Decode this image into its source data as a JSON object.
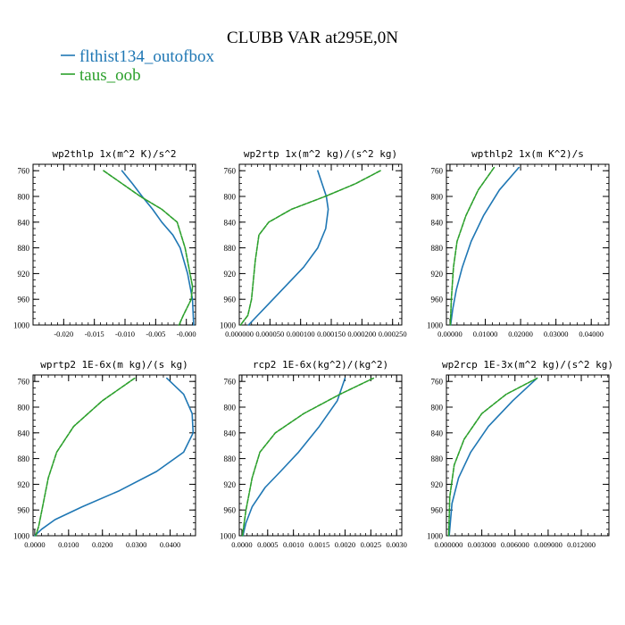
{
  "figure": {
    "title": "CLUBB VAR at295E,0N",
    "legend": [
      {
        "name": "flthist134_outofbox",
        "color": "#1f77b4"
      },
      {
        "name": "taus_oob",
        "color": "#2ca02c"
      }
    ]
  },
  "chart_data": [
    {
      "type": "line",
      "title": "wp2thlp  1x(m^2 K)/s^2",
      "xlim": [
        -0.025,
        0.0015
      ],
      "ylim": [
        1000,
        750
      ],
      "xticks": [
        -0.02,
        -0.015,
        -0.01,
        -0.005,
        -0.0
      ],
      "xtick_labels": [
        "-0.020",
        "-0.015",
        "-0.010",
        "-0.005",
        "-0.000"
      ],
      "yticks": [
        760,
        800,
        840,
        880,
        920,
        960,
        1000
      ],
      "series": [
        {
          "name": "flthist134_outofbox",
          "color": "#1f77b4",
          "x": [
            -0.0105,
            -0.0088,
            -0.0072,
            -0.0055,
            -0.004,
            -0.0022,
            -0.001,
            0.0002,
            0.001,
            0.0012
          ],
          "y": [
            760,
            780,
            800,
            820,
            840,
            860,
            880,
            920,
            960,
            1000
          ]
        },
        {
          "name": "taus_oob",
          "color": "#2ca02c",
          "x": [
            -0.0135,
            -0.0105,
            -0.0075,
            -0.004,
            -0.0015,
            -0.0002,
            0.001,
            0.0008,
            -0.0005,
            -0.0012
          ],
          "y": [
            760,
            780,
            800,
            820,
            840,
            880,
            940,
            960,
            985,
            1000
          ]
        }
      ]
    },
    {
      "type": "line",
      "title": "wp2rtp  1x(m^2 kg)/(s^2 kg)",
      "xlim": [
        0,
        0.000265
      ],
      "ylim": [
        1000,
        750
      ],
      "xticks": [
        0.0,
        5e-05,
        0.0001,
        0.00015,
        0.0002,
        0.00025
      ],
      "xtick_labels": [
        "0.000000",
        "0.000050",
        "0.000100",
        "0.000150",
        "0.000200",
        "0.000250"
      ],
      "yticks": [
        760,
        800,
        840,
        880,
        920,
        960,
        1000
      ],
      "series": [
        {
          "name": "flthist134_outofbox",
          "color": "#1f77b4",
          "x": [
            0.000128,
            0.000135,
            0.000142,
            0.000145,
            0.000141,
            0.000128,
            0.000105,
            7.5e-05,
            4.5e-05,
            1.5e-05
          ],
          "y": [
            760,
            780,
            800,
            820,
            850,
            880,
            910,
            940,
            970,
            1000
          ]
        },
        {
          "name": "taus_oob",
          "color": "#2ca02c",
          "x": [
            0.00023,
            0.00019,
            0.00014,
            8.5e-05,
            4.8e-05,
            3.2e-05,
            2.6e-05,
            2e-05,
            1.4e-05,
            2e-06
          ],
          "y": [
            760,
            780,
            800,
            820,
            840,
            860,
            900,
            960,
            985,
            1000
          ]
        }
      ]
    },
    {
      "type": "line",
      "title": "wpthlp2  1x(m K^2)/s",
      "xlim": [
        -0.001,
        0.045
      ],
      "ylim": [
        1000,
        750
      ],
      "xticks": [
        0.0,
        0.01,
        0.02,
        0.03,
        0.04
      ],
      "xtick_labels": [
        "0.00000",
        "0.01000",
        "0.02000",
        "0.03000",
        "0.04000"
      ],
      "yticks": [
        760,
        800,
        840,
        880,
        920,
        960,
        1000
      ],
      "series": [
        {
          "name": "flthist134_outofbox",
          "color": "#1f77b4",
          "x": [
            0.0195,
            0.014,
            0.0095,
            0.006,
            0.0035,
            0.0018,
            0.0008,
            0.0002
          ],
          "y": [
            755,
            790,
            830,
            870,
            910,
            945,
            975,
            1000
          ]
        },
        {
          "name": "taus_oob",
          "color": "#2ca02c",
          "x": [
            0.0125,
            0.008,
            0.0045,
            0.002,
            0.001,
            0.0004,
            0.0001
          ],
          "y": [
            755,
            790,
            830,
            870,
            910,
            960,
            1000
          ]
        }
      ]
    },
    {
      "type": "line",
      "title": "wprtp2  1E-6x(m kg)/(s kg)",
      "xlim": [
        -0.0005,
        0.0475
      ],
      "ylim": [
        1000,
        750
      ],
      "xticks": [
        0.0,
        0.01,
        0.02,
        0.03,
        0.04
      ],
      "xtick_labels": [
        "0.0000",
        "0.0100",
        "0.0200",
        "0.0300",
        "0.0400"
      ],
      "yticks": [
        760,
        800,
        840,
        880,
        920,
        960,
        1000
      ],
      "series": [
        {
          "name": "flthist134_outofbox",
          "color": "#1f77b4",
          "x": [
            0.039,
            0.044,
            0.0465,
            0.0468,
            0.044,
            0.036,
            0.025,
            0.014,
            0.006,
            0.002,
            0.0
          ],
          "y": [
            755,
            780,
            810,
            840,
            870,
            900,
            930,
            955,
            975,
            990,
            1000
          ]
        },
        {
          "name": "taus_oob",
          "color": "#2ca02c",
          "x": [
            0.0295,
            0.02,
            0.0115,
            0.0065,
            0.004,
            0.0025,
            0.0012,
            0.0003
          ],
          "y": [
            755,
            790,
            830,
            870,
            910,
            950,
            985,
            1000
          ]
        }
      ]
    },
    {
      "type": "line",
      "title": "rcp2  1E-6x(kg^2)/(kg^2)",
      "xlim": [
        -5e-05,
        0.0031
      ],
      "ylim": [
        1000,
        750
      ],
      "xticks": [
        0.0,
        0.0005,
        0.001,
        0.0015,
        0.002,
        0.0025,
        0.003
      ],
      "xtick_labels": [
        "0.0000",
        "0.0005",
        "0.0010",
        "0.0015",
        "0.0020",
        "0.0025",
        "0.0030"
      ],
      "yticks": [
        760,
        800,
        840,
        880,
        920,
        960,
        1000
      ],
      "series": [
        {
          "name": "flthist134_outofbox",
          "color": "#1f77b4",
          "x": [
            0.002,
            0.00185,
            0.0015,
            0.0011,
            0.00075,
            0.00045,
            0.0002,
            8e-05,
            2e-05
          ],
          "y": [
            755,
            790,
            830,
            870,
            900,
            925,
            955,
            980,
            1000
          ]
        },
        {
          "name": "taus_oob",
          "color": "#2ca02c",
          "x": [
            0.00255,
            0.0019,
            0.0012,
            0.00065,
            0.00035,
            0.0002,
            8e-05,
            1e-05
          ],
          "y": [
            755,
            780,
            810,
            840,
            870,
            910,
            960,
            1000
          ]
        }
      ]
    },
    {
      "type": "line",
      "title": "wp2rcp  1E-3x(m^2 kg)/(s^2 kg)",
      "xlim": [
        -0.0002,
        0.0145
      ],
      "ylim": [
        1000,
        750
      ],
      "xticks": [
        0.0,
        0.003,
        0.006,
        0.009,
        0.012
      ],
      "xtick_labels": [
        "0.000000",
        "0.003000",
        "0.006000",
        "0.009000",
        "0.012000"
      ],
      "yticks": [
        760,
        800,
        840,
        880,
        920,
        960,
        1000
      ],
      "series": [
        {
          "name": "flthist134_outofbox",
          "color": "#1f77b4",
          "x": [
            0.008,
            0.0058,
            0.0036,
            0.002,
            0.0009,
            0.0003,
            5e-05
          ],
          "y": [
            755,
            790,
            830,
            870,
            910,
            950,
            1000
          ]
        },
        {
          "name": "taus_oob",
          "color": "#2ca02c",
          "x": [
            0.008,
            0.0052,
            0.003,
            0.0014,
            0.0005,
            0.0001,
            0.0
          ],
          "y": [
            755,
            780,
            810,
            850,
            890,
            940,
            1000
          ]
        }
      ]
    }
  ]
}
